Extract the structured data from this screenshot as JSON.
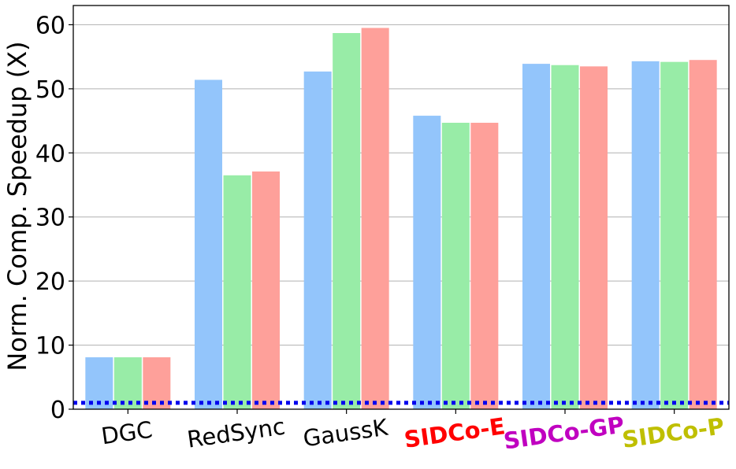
{
  "chart_data": {
    "type": "bar",
    "title": "",
    "xlabel": "",
    "ylabel": "Norm. Comp. Speedup (X)",
    "ylim": [
      0,
      63
    ],
    "yticks": [
      0,
      10,
      20,
      30,
      40,
      50,
      60
    ],
    "grid": "horizontal",
    "categories": [
      "DGC",
      "RedSync",
      "GaussK",
      "SIDCo-E",
      "SIDCo-GP",
      "SIDCo-P"
    ],
    "category_colors": [
      "#000000",
      "#000000",
      "#000000",
      "#ff0000",
      "#c000c0",
      "#bfbf00"
    ],
    "category_bold": [
      false,
      false,
      false,
      true,
      true,
      true
    ],
    "series": [
      {
        "values": [
          8.1,
          51.4,
          52.7,
          45.8,
          53.9,
          54.3
        ],
        "color": "#93c5fb"
      },
      {
        "values": [
          8.1,
          36.5,
          58.7,
          44.7,
          53.7,
          54.2
        ],
        "color": "#98eca7"
      },
      {
        "values": [
          8.1,
          37.1,
          59.5,
          44.7,
          53.5,
          54.5
        ],
        "color": "#fea09a"
      }
    ],
    "reference_line": {
      "y": 1,
      "color": "#0000ee",
      "style": "dotted"
    }
  }
}
